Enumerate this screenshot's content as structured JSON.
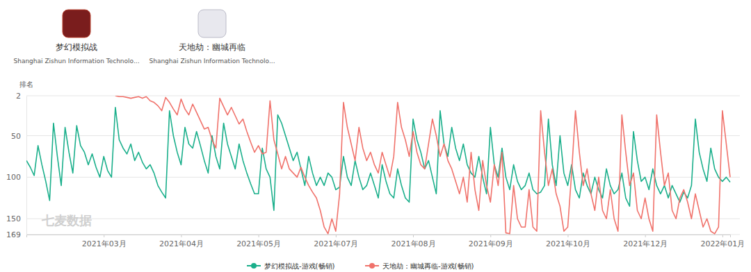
{
  "chart_data": {
    "type": "line",
    "apps": [
      {
        "name": "梦幻模拟战",
        "developer": "Shanghai Zishun Information Technolo..."
      },
      {
        "name": "天地劫：幽城再临",
        "developer": "Shanghai Zishun Information Technolo..."
      }
    ],
    "y_label": "排名",
    "annotations": [
      "七麦数据"
    ],
    "categories": [
      null,
      null,
      null,
      null,
      null,
      null,
      null,
      null,
      null,
      null,
      null,
      null,
      null,
      null,
      null,
      null,
      null,
      null,
      null,
      null,
      "2021年03月",
      null,
      null,
      null,
      null,
      null,
      null,
      null,
      null,
      null,
      null,
      null,
      null,
      null,
      null,
      null,
      null,
      null,
      null,
      null,
      "2021年04月",
      null,
      null,
      null,
      null,
      null,
      null,
      null,
      null,
      null,
      null,
      null,
      null,
      null,
      null,
      null,
      null,
      null,
      null,
      null,
      "2021年05月",
      null,
      null,
      null,
      null,
      null,
      null,
      null,
      null,
      null,
      null,
      null,
      null,
      null,
      null,
      null,
      null,
      null,
      null,
      null,
      "2021年07月",
      null,
      null,
      null,
      null,
      null,
      null,
      null,
      null,
      null,
      null,
      null,
      null,
      null,
      null,
      null,
      null,
      null,
      null,
      null,
      "2021年08月",
      null,
      null,
      null,
      null,
      null,
      null,
      null,
      null,
      null,
      null,
      null,
      null,
      null,
      null,
      null,
      null,
      null,
      null,
      null,
      "2021年09月",
      null,
      null,
      null,
      null,
      null,
      null,
      null,
      null,
      null,
      null,
      null,
      null,
      null,
      null,
      null,
      null,
      null,
      null,
      null,
      "2021年10月",
      null,
      null,
      null,
      null,
      null,
      null,
      null,
      null,
      null,
      null,
      null,
      null,
      null,
      null,
      null,
      null,
      null,
      null,
      null,
      "2021年12月",
      null,
      null,
      null,
      null,
      null,
      null,
      null,
      null,
      null,
      null,
      null,
      null,
      null,
      null,
      null,
      null,
      null,
      null,
      null,
      "2022年01月",
      null,
      null
    ],
    "series": [
      {
        "name": "梦幻模拟战-游戏(畅销)",
        "color": "#1aaf8b",
        "values": [
          80,
          88,
          98,
          62,
          85,
          105,
          128,
          35,
          75,
          110,
          40,
          70,
          95,
          38,
          62,
          70,
          85,
          72,
          88,
          100,
          75,
          92,
          100,
          16,
          55,
          65,
          72,
          60,
          80,
          70,
          82,
          90,
          85,
          95,
          110,
          118,
          125,
          20,
          50,
          70,
          85,
          40,
          60,
          65,
          45,
          62,
          80,
          95,
          50,
          75,
          90,
          35,
          60,
          75,
          90,
          60,
          80,
          95,
          108,
          120,
          120,
          65,
          90,
          100,
          140,
          25,
          35,
          50,
          65,
          80,
          70,
          90,
          110,
          75,
          95,
          110,
          100,
          110,
          95,
          100,
          115,
          112,
          75,
          100,
          110,
          80,
          100,
          115,
          110,
          95,
          110,
          125,
          85,
          105,
          120,
          125,
          90,
          110,
          125,
          130,
          30,
          55,
          70,
          90,
          80,
          100,
          120,
          20,
          60,
          75,
          40,
          65,
          80,
          60,
          85,
          95,
          100,
          75,
          100,
          120,
          40,
          85,
          100,
          65,
          100,
          115,
          85,
          105,
          115,
          110,
          95,
          115,
          120,
          118,
          110,
          30,
          85,
          110,
          50,
          95,
          110,
          85,
          115,
          125,
          95,
          110,
          120,
          100,
          115,
          125,
          90,
          110,
          120,
          115,
          95,
          125,
          135,
          45,
          80,
          105,
          100,
          115,
          90,
          110,
          120,
          110,
          125,
          110,
          120,
          130,
          118,
          125,
          110,
          30,
          70,
          90,
          105,
          65,
          90,
          100,
          105,
          100,
          106
        ]
      },
      {
        "name": "天地劫：幽城再临-游戏(畅销)",
        "color": "#f0726b",
        "values": [
          null,
          null,
          null,
          null,
          null,
          null,
          null,
          null,
          null,
          null,
          null,
          null,
          null,
          null,
          null,
          null,
          null,
          null,
          null,
          null,
          null,
          null,
          null,
          2,
          3,
          3,
          4,
          5,
          4,
          3,
          5,
          3,
          8,
          10,
          14,
          20,
          4,
          10,
          18,
          25,
          6,
          18,
          25,
          12,
          22,
          32,
          42,
          40,
          55,
          65,
          5,
          15,
          25,
          16,
          26,
          36,
          30,
          45,
          58,
          70,
          62,
          72,
          70,
          8,
          55,
          72,
          90,
          75,
          90,
          95,
          100,
          88,
          100,
          110,
          118,
          125,
          140,
          160,
          168,
          150,
          165,
          120,
          10,
          40,
          60,
          80,
          40,
          65,
          80,
          70,
          85,
          95,
          70,
          85,
          100,
          75,
          10,
          40,
          55,
          75,
          45,
          70,
          85,
          90,
          60,
          30,
          50,
          75,
          60,
          80,
          90,
          105,
          120,
          100,
          130,
          70,
          115,
          140,
          80,
          110,
          130,
          85,
          110,
          70,
          167,
          168,
          110,
          150,
          160,
          160,
          115,
          160,
          165,
          20,
          70,
          110,
          90,
          120,
          135,
          165,
          160,
          95,
          20,
          70,
          110,
          90,
          120,
          140,
          100,
          140,
          150,
          115,
          150,
          165,
          25,
          70,
          110,
          95,
          140,
          150,
          125,
          150,
          165,
          25,
          70,
          110,
          95,
          140,
          150,
          125,
          115,
          130,
          150,
          120,
          140,
          160,
          150,
          165,
          168,
          160,
          20,
          60,
          100
        ]
      }
    ],
    "ylim": [
      2,
      169
    ],
    "yticks": [
      2,
      50,
      100,
      150,
      169
    ],
    "grid": true,
    "legend": "bottom"
  }
}
